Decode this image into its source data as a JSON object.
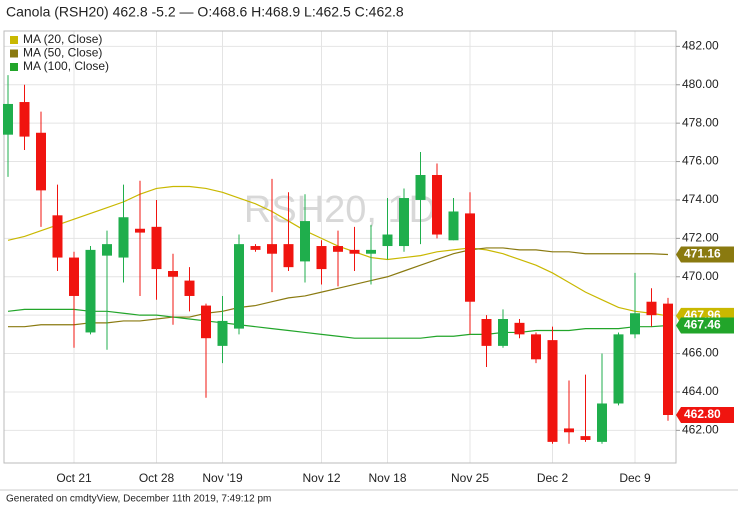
{
  "chart_data": {
    "type": "candlestick",
    "title": "Canola (RSH20) 462.8 -5.2 — O:468.6 H:468.9 L:462.5 C:462.8",
    "watermark": "RSH20, 1D",
    "footer": "Generated on cmdtyView, December 11th 2019, 7:49:12 pm",
    "categories": [
      null,
      null,
      null,
      null,
      "Oct 21",
      null,
      null,
      null,
      null,
      "Oct 28",
      null,
      null,
      null,
      "Nov '19",
      null,
      null,
      null,
      null,
      null,
      "Nov 12",
      null,
      null,
      null,
      "Nov 18",
      null,
      null,
      null,
      null,
      "Nov 25",
      null,
      null,
      null,
      null,
      "Dec 2",
      null,
      null,
      null,
      null,
      "Dec 9",
      null,
      null
    ],
    "open": [
      477.4,
      479.1,
      477.5,
      473.2,
      471.0,
      467.1,
      471.1,
      471.0,
      472.5,
      472.6,
      470.3,
      469.8,
      468.5,
      466.4,
      467.3,
      471.6,
      471.7,
      471.7,
      470.8,
      471.6,
      471.6,
      471.4,
      471.2,
      471.6,
      471.6,
      474.0,
      475.3,
      471.9,
      473.3,
      467.8,
      466.4,
      467.6,
      467.0,
      466.7,
      462.1,
      461.7,
      461.4,
      463.4,
      467.0,
      468.7,
      468.6
    ],
    "high": [
      480.5,
      480.0,
      478.6,
      474.8,
      471.3,
      471.6,
      472.4,
      474.8,
      475.0,
      474.0,
      471.2,
      470.5,
      468.6,
      469.0,
      472.2,
      471.7,
      475.1,
      474.4,
      474.3,
      471.9,
      472.4,
      472.6,
      472.7,
      474.1,
      474.6,
      476.5,
      475.9,
      474.1,
      474.4,
      468.0,
      468.3,
      467.8,
      467.1,
      467.4,
      464.6,
      464.9,
      466.0,
      467.1,
      470.2,
      469.4,
      468.9
    ],
    "low": [
      475.2,
      476.6,
      472.6,
      470.3,
      466.3,
      467.0,
      466.2,
      469.7,
      469.0,
      468.8,
      467.5,
      468.2,
      463.7,
      465.5,
      467.0,
      471.3,
      469.2,
      470.3,
      469.7,
      469.6,
      469.5,
      470.3,
      469.6,
      470.9,
      471.3,
      471.7,
      472.0,
      471.9,
      467.0,
      465.3,
      466.3,
      466.8,
      465.5,
      461.3,
      461.3,
      461.4,
      461.3,
      463.3,
      466.8,
      467.4,
      462.5
    ],
    "close": [
      479.0,
      477.3,
      474.5,
      471.0,
      469.0,
      471.4,
      471.7,
      473.1,
      472.3,
      470.4,
      470.0,
      469.0,
      466.8,
      467.7,
      471.7,
      471.4,
      471.2,
      470.5,
      472.9,
      470.4,
      471.3,
      471.2,
      471.4,
      472.2,
      474.1,
      475.3,
      472.2,
      473.4,
      468.7,
      466.4,
      467.8,
      467.0,
      465.7,
      461.4,
      461.9,
      461.5,
      463.4,
      467.0,
      468.1,
      468.0,
      462.8
    ],
    "up_color": "#1fae4c",
    "down_color": "#f0140f",
    "close_label": "462.80",
    "series": [
      {
        "name": "MA (20, Close)",
        "color": "#c9b800",
        "end_label": "467.96",
        "values": [
          471.9,
          472.1,
          472.4,
          472.7,
          473.0,
          473.3,
          473.6,
          473.9,
          474.3,
          474.6,
          474.7,
          474.7,
          474.6,
          474.4,
          474.1,
          473.8,
          473.4,
          472.9,
          472.4,
          472.0,
          471.6,
          471.3,
          471.0,
          470.9,
          471.0,
          471.1,
          471.3,
          471.4,
          471.5,
          471.4,
          471.2,
          470.9,
          470.6,
          470.2,
          469.7,
          469.2,
          468.8,
          468.4,
          468.2,
          468.1,
          467.96
        ]
      },
      {
        "name": "MA (50, Close)",
        "color": "#8a7a10",
        "end_label": "471.16",
        "values": [
          467.4,
          467.4,
          467.5,
          467.5,
          467.5,
          467.6,
          467.6,
          467.7,
          467.7,
          467.8,
          467.9,
          467.9,
          468.1,
          468.2,
          468.4,
          468.5,
          468.7,
          468.9,
          469.0,
          469.2,
          469.4,
          469.6,
          469.8,
          470.0,
          470.3,
          470.6,
          470.9,
          471.2,
          471.4,
          471.5,
          471.5,
          471.4,
          471.4,
          471.3,
          471.3,
          471.2,
          471.2,
          471.2,
          471.2,
          471.2,
          471.16
        ]
      },
      {
        "name": "MA (100, Close)",
        "color": "#22a52a",
        "end_label": "467.46",
        "values": [
          468.2,
          468.3,
          468.3,
          468.3,
          468.3,
          468.2,
          468.2,
          468.1,
          468.0,
          468.0,
          467.9,
          467.8,
          467.7,
          467.6,
          467.5,
          467.4,
          467.3,
          467.2,
          467.1,
          467.0,
          466.9,
          466.8,
          466.8,
          466.8,
          466.8,
          466.8,
          466.9,
          466.9,
          467.0,
          467.0,
          467.1,
          467.1,
          467.2,
          467.2,
          467.2,
          467.3,
          467.3,
          467.3,
          467.4,
          467.4,
          467.46
        ]
      }
    ],
    "ylim": [
      460.3,
      482.8
    ],
    "yticks": [
      {
        "value": 462,
        "label": "462.00"
      },
      {
        "value": 464,
        "label": "464.00"
      },
      {
        "value": 466,
        "label": "466.00"
      },
      {
        "value": 468,
        "label": "468.00"
      },
      {
        "value": 470,
        "label": "470.00"
      },
      {
        "value": 472,
        "label": "472.00"
      },
      {
        "value": 474,
        "label": "474.00"
      },
      {
        "value": 476,
        "label": "476.00"
      },
      {
        "value": 478,
        "label": "478.00"
      },
      {
        "value": 480,
        "label": "480.00"
      },
      {
        "value": 482,
        "label": "482.00"
      }
    ],
    "y_axis_side": "right",
    "legend": "top-left",
    "grid": true
  }
}
